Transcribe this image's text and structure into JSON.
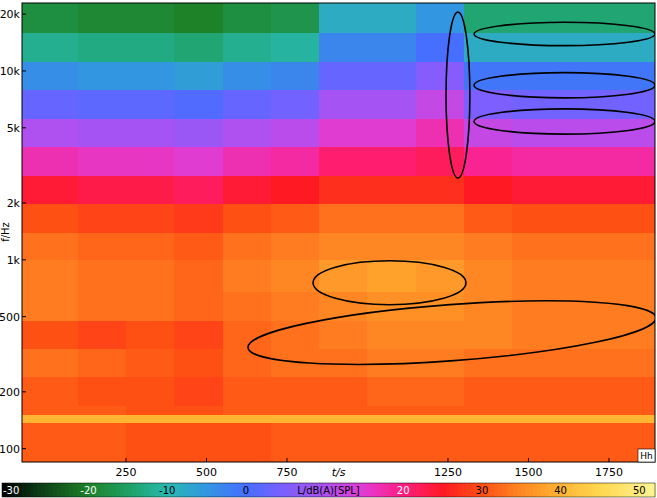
{
  "chart_data": {
    "type": "heatmap",
    "x_label": "t/s",
    "y_label": "f/Hz",
    "annotation": "Hh",
    "log": "y",
    "grid": false,
    "xlim": [
      -73,
      1893
    ],
    "ylim": [
      85,
      22900
    ],
    "xticks": [
      250,
      500,
      750,
      1250,
      1500,
      1750
    ],
    "yticks": [
      100,
      200,
      500,
      {
        "value": 1000,
        "label": "1k"
      },
      {
        "value": 2000,
        "label": "2k"
      },
      {
        "value": 5000,
        "label": "5k"
      },
      {
        "value": 10000,
        "label": "10k"
      },
      {
        "value": 20000,
        "label": "20k"
      }
    ],
    "x_edges": [
      -73,
      100,
      250,
      400,
      550,
      700,
      850,
      1000,
      1150,
      1300,
      1450,
      1600,
      1750,
      1893
    ],
    "y_edges": [
      85,
      120,
      138,
      152,
      170,
      240,
      340,
      480,
      680,
      1000,
      1400,
      2000,
      2800,
      4000,
      5600,
      8000,
      11300,
      16000,
      22900
    ],
    "cells": [
      [
        31,
        31,
        30,
        30,
        30,
        31,
        31,
        31,
        31,
        31,
        31,
        31,
        31
      ],
      [
        31,
        31,
        30,
        30,
        30,
        31,
        31,
        31,
        31,
        31,
        31,
        31,
        31
      ],
      [
        40,
        40,
        40,
        40,
        40,
        40,
        40,
        40,
        40,
        40,
        40,
        40,
        40
      ],
      [
        31,
        31,
        30,
        30,
        31,
        31,
        31,
        31,
        31,
        31,
        31,
        31,
        31
      ],
      [
        31,
        30,
        30,
        29,
        31,
        31,
        31,
        32,
        32,
        31,
        31,
        31,
        31
      ],
      [
        33,
        32,
        31,
        30,
        32,
        33,
        33,
        34,
        34,
        33,
        33,
        33,
        33
      ],
      [
        30,
        29,
        30,
        29,
        32,
        33,
        34,
        35,
        35,
        35,
        34,
        34,
        34
      ],
      [
        34,
        33,
        33,
        32,
        33,
        34,
        35,
        36,
        36,
        35,
        34,
        34,
        34
      ],
      [
        34,
        33,
        33,
        32,
        34,
        35,
        37,
        38,
        37,
        35,
        34,
        34,
        34
      ],
      [
        33,
        32,
        32,
        31,
        33,
        34,
        35,
        35,
        35,
        34,
        33,
        33,
        33
      ],
      [
        30,
        29,
        29,
        28,
        30,
        31,
        33,
        33,
        33,
        31,
        30,
        30,
        30
      ],
      [
        24,
        23,
        23,
        22,
        24,
        25,
        27,
        27,
        27,
        25,
        24,
        24,
        24
      ],
      [
        17,
        16,
        16,
        15,
        17,
        18,
        21,
        21,
        22,
        19,
        18,
        18,
        18
      ],
      [
        10,
        9,
        9,
        8,
        10,
        11,
        15,
        15,
        17,
        12,
        11,
        11,
        11
      ],
      [
        3,
        2,
        2,
        1,
        3,
        4,
        9,
        9,
        12,
        5,
        4,
        4,
        4
      ],
      [
        -4,
        -5,
        -5,
        -6,
        -4,
        -3,
        3,
        3,
        6,
        -1,
        -1,
        -1,
        -1
      ],
      [
        -12,
        -13,
        -13,
        -14,
        -12,
        -11,
        -3,
        -3,
        0,
        -8,
        -8,
        -8,
        -8
      ],
      [
        -18,
        -19,
        -19,
        -20,
        -18,
        -17,
        -8,
        -8,
        -5,
        -14,
        -14,
        -14,
        -14
      ]
    ],
    "colorbar": {
      "label": "L/dB(A)[SPL]",
      "range": [
        -31,
        52
      ],
      "ticks": [
        -30,
        -20,
        -10,
        0,
        20,
        30,
        40,
        50
      ]
    },
    "regions": [
      {
        "start": [
          1281,
          20500
        ],
        "end": [
          1281,
          2710
        ],
        "minor": [
          1318,
          7400
        ]
      },
      {
        "start": [
          1331,
          15700
        ],
        "end": [
          1893,
          15700
        ],
        "minor": [
          1610,
          18100
        ]
      },
      {
        "start": [
          1331,
          8400
        ],
        "end": [
          1893,
          8400
        ],
        "minor": [
          1610,
          9800
        ]
      },
      {
        "start": [
          1331,
          5400
        ],
        "end": [
          1893,
          5400
        ],
        "minor": [
          1610,
          6300
        ]
      },
      {
        "start": [
          831,
          756
        ],
        "end": [
          1306,
          756
        ],
        "minor": [
          1070,
          988
        ]
      },
      {
        "start": [
          629,
          343
        ],
        "end": [
          1896,
          494
        ],
        "minor": [
          1256,
          579
        ]
      }
    ]
  }
}
